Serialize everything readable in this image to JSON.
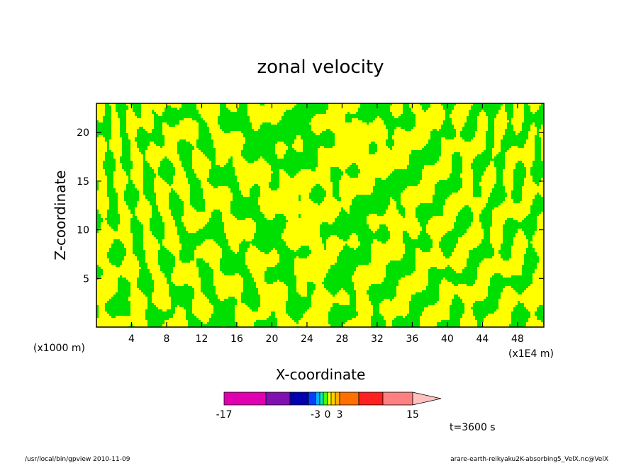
{
  "chart_data": {
    "type": "heatmap",
    "title": "zonal velocity",
    "xlabel": "X-coordinate",
    "ylabel": "Z-coordinate",
    "x_unit": "(x1E4 m)",
    "y_unit": "(x1000 m)",
    "x_ticks": [
      "4",
      "8",
      "12",
      "16",
      "20",
      "24",
      "28",
      "32",
      "36",
      "40",
      "44",
      "48"
    ],
    "y_ticks": [
      "5",
      "10",
      "15",
      "20"
    ],
    "xlim": [
      0,
      51
    ],
    "ylim": [
      0,
      23
    ],
    "grid": false,
    "colorbar": {
      "levels": [
        -17,
        -11,
        -7,
        -5,
        -3,
        -2,
        -1,
        0,
        1,
        2,
        3,
        5,
        7,
        11,
        15
      ],
      "colors": [
        "#e000b0",
        "#8010b0",
        "#0000b0",
        "#0040ff",
        "#00b0ff",
        "#00f0c0",
        "#40ff00",
        "#ffff00",
        "#ffd000",
        "#ffb000",
        "#ff7000",
        "#ff2020",
        "#ff8080",
        "#ffc0c0"
      ],
      "tick_labels": [
        "-17",
        "-3",
        "0",
        "3",
        "15"
      ],
      "tick_values": [
        -17,
        -3,
        0,
        3,
        15
      ]
    },
    "field_colors": {
      "positive": "#ffff00",
      "negative": "#00e000"
    },
    "time_label": "t=3600 s"
  },
  "footer": {
    "left": "/usr/local/bin/gpview   2010-11-09",
    "right": "arare-earth-reikyaku2K-absorbing5_VelX.nc@VelX"
  }
}
